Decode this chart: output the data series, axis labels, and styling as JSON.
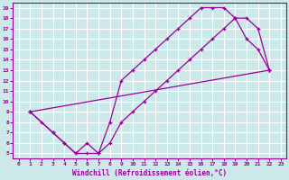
{
  "xlabel": "Windchill (Refroidissement éolien,°C)",
  "bg_color": "#cce8e8",
  "grid_color": "#ffffff",
  "line_color": "#990099",
  "xlim": [
    -0.5,
    23.5
  ],
  "ylim": [
    4.5,
    19.5
  ],
  "xticks": [
    0,
    1,
    2,
    3,
    4,
    5,
    6,
    7,
    8,
    9,
    10,
    11,
    12,
    13,
    14,
    15,
    16,
    17,
    18,
    19,
    20,
    21,
    22,
    23
  ],
  "yticks": [
    5,
    6,
    7,
    8,
    9,
    10,
    11,
    12,
    13,
    14,
    15,
    16,
    17,
    18,
    19
  ],
  "line1_x": [
    1,
    2,
    3,
    4,
    5,
    6,
    7,
    8,
    9,
    10,
    11,
    12,
    13,
    14,
    15,
    16,
    17,
    18,
    19,
    20,
    21,
    22
  ],
  "line1_y": [
    9,
    8,
    7,
    6,
    5,
    6,
    5,
    8,
    12,
    13,
    14,
    15,
    16,
    17,
    18,
    19,
    19,
    19,
    18,
    16,
    15,
    13
  ],
  "line2_x": [
    1,
    3,
    4,
    5,
    6,
    7,
    8,
    9,
    10,
    11,
    12,
    13,
    14,
    15,
    16,
    17,
    18,
    19,
    20,
    21,
    22
  ],
  "line2_y": [
    9,
    7,
    6,
    5,
    5,
    5,
    6,
    8,
    9,
    10,
    11,
    12,
    13,
    14,
    15,
    16,
    17,
    18,
    18,
    17,
    13
  ],
  "line3_x": [
    1,
    22
  ],
  "line3_y": [
    9,
    13
  ]
}
